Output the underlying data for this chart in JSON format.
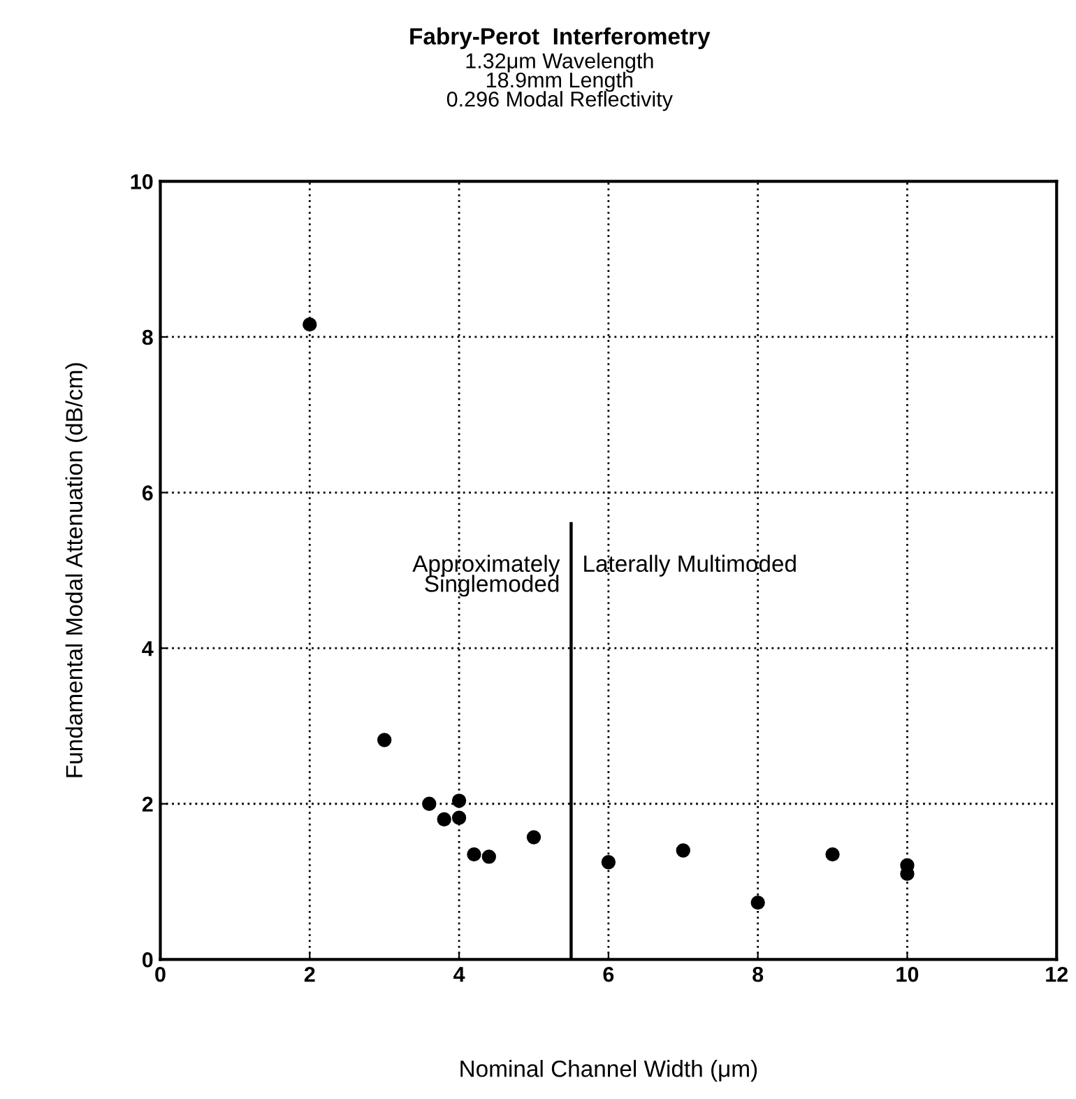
{
  "chart_data": {
    "type": "scatter",
    "title": "Fabry-Perot  Interferometry",
    "subtitle": "1.32μm Wavelength\n18.9mm Length\n0.296 Modal Reflectivity",
    "xlabel": "Nominal Channel Width (μm)",
    "ylabel": "Fundamental Modal Attenuation (dB/cm)",
    "x": [
      2,
      3,
      3.6,
      3.8,
      4,
      4,
      4.2,
      4.4,
      5,
      6,
      7,
      8,
      9,
      10,
      10
    ],
    "series": [
      {
        "color": "#000000",
        "values": [
          8.16,
          2.82,
          2.0,
          1.8,
          2.04,
          1.82,
          1.35,
          1.32,
          1.57,
          1.25,
          1.4,
          0.73,
          1.35,
          1.21,
          1.1
        ]
      }
    ],
    "xlim": [
      0,
      12
    ],
    "ylim": [
      0,
      10
    ],
    "xticks": [
      0,
      2,
      4,
      6,
      8,
      10,
      12
    ],
    "yticks": [
      0,
      2,
      4,
      6,
      8,
      10
    ],
    "grid": true,
    "marker": "circle",
    "ref_lines": [
      {
        "axis": "x",
        "value": 5.5,
        "color": "#000000"
      }
    ],
    "annotations": [
      "Approximately\nSinglemoded",
      "Laterally Multimoded"
    ]
  }
}
